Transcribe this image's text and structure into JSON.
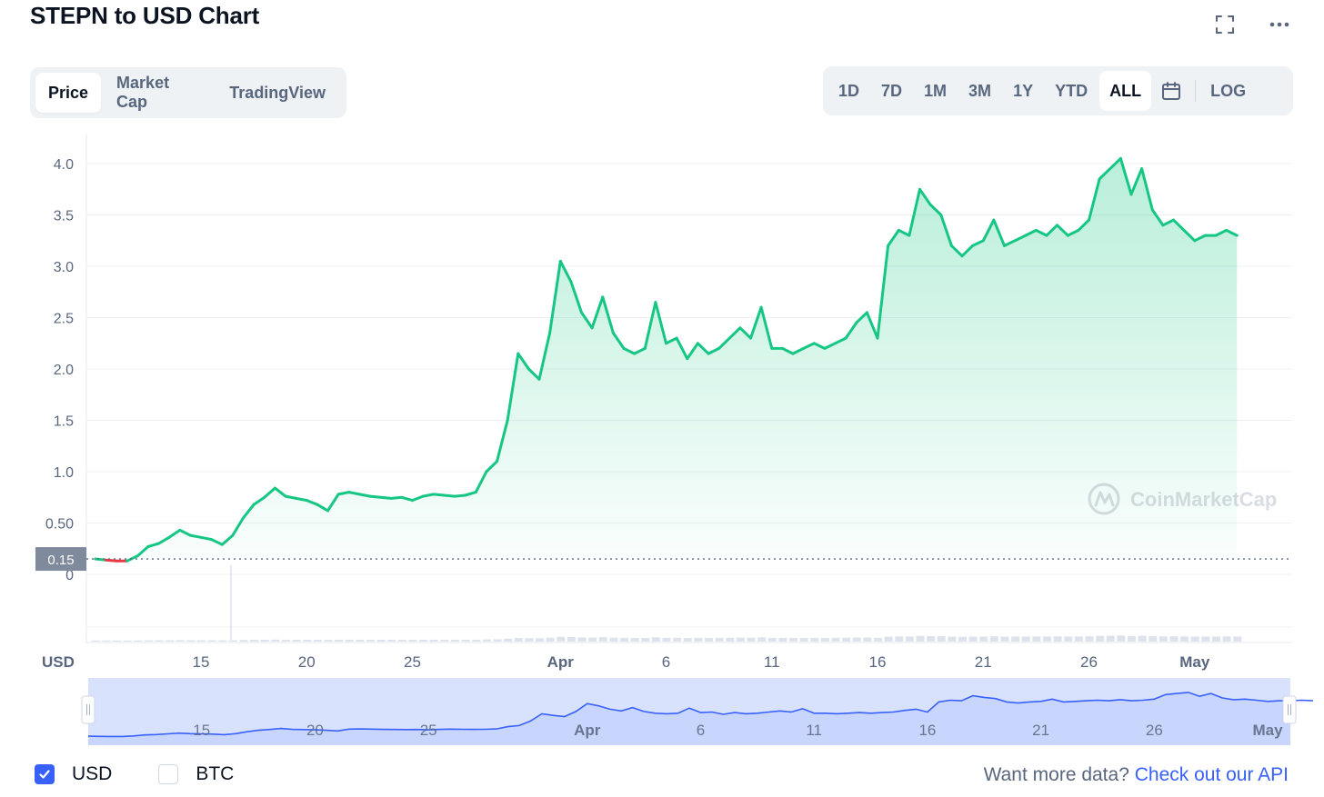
{
  "header": {
    "title": "STEPN to USD Chart"
  },
  "tabs": [
    {
      "label": "Price",
      "active": true
    },
    {
      "label": "Market Cap",
      "active": false
    },
    {
      "label": "TradingView",
      "active": false
    }
  ],
  "ranges": [
    {
      "label": "1D",
      "active": false
    },
    {
      "label": "7D",
      "active": false
    },
    {
      "label": "1M",
      "active": false
    },
    {
      "label": "3M",
      "active": false
    },
    {
      "label": "1Y",
      "active": false
    },
    {
      "label": "YTD",
      "active": false
    },
    {
      "label": "ALL",
      "active": true
    }
  ],
  "log_label": "LOG",
  "icons": {
    "fullscreen": "fullscreen-icon",
    "more": "more-icon",
    "calendar": "calendar-icon",
    "watermark": "coinmarketcap-logo"
  },
  "watermark_text": "CoinMarketCap",
  "currency_toggles": [
    {
      "label": "USD",
      "checked": true
    },
    {
      "label": "BTC",
      "checked": false
    }
  ],
  "footer": {
    "prefix": "Want more data?",
    "link": "Check out our API"
  },
  "colors": {
    "up": "#16c784",
    "down": "#ea3943",
    "accent": "#3861fb",
    "navigator": "#3861fb"
  },
  "chart_data": {
    "type": "area",
    "title": "STEPN to USD Chart",
    "ylabel": "USD",
    "xlabel": "",
    "ylim": [
      0,
      4.2
    ],
    "y_ticks": [
      "0",
      "0.50",
      "1.0",
      "1.5",
      "2.0",
      "2.5",
      "3.0",
      "3.5",
      "4.0"
    ],
    "x_ticks": [
      "15",
      "20",
      "25",
      "Apr",
      "6",
      "11",
      "16",
      "21",
      "26",
      "May"
    ],
    "baseline_label": "0.15",
    "baseline": 0.15,
    "grid": true,
    "series": [
      {
        "points": [
          [
            "Mar 10",
            0.15
          ],
          [
            "Mar 10.5",
            0.14
          ],
          [
            "Mar 11",
            0.13
          ],
          [
            "Mar 11.5",
            0.13
          ],
          [
            "Mar 12",
            0.18
          ],
          [
            "Mar 12.5",
            0.27
          ],
          [
            "Mar 13",
            0.3
          ],
          [
            "Mar 13.5",
            0.36
          ],
          [
            "Mar 14",
            0.43
          ],
          [
            "Mar 14.5",
            0.38
          ],
          [
            "Mar 15",
            0.36
          ],
          [
            "Mar 15.5",
            0.34
          ],
          [
            "Mar 16",
            0.29
          ],
          [
            "Mar 16.5",
            0.38
          ],
          [
            "Mar 17",
            0.55
          ],
          [
            "Mar 17.5",
            0.68
          ],
          [
            "Mar 18",
            0.75
          ],
          [
            "Mar 18.5",
            0.84
          ],
          [
            "Mar 19",
            0.76
          ],
          [
            "Mar 19.5",
            0.74
          ],
          [
            "Mar 20",
            0.72
          ],
          [
            "Mar 20.5",
            0.68
          ],
          [
            "Mar 21",
            0.62
          ],
          [
            "Mar 21.5",
            0.78
          ],
          [
            "Mar 22",
            0.8
          ],
          [
            "Mar 22.5",
            0.78
          ],
          [
            "Mar 23",
            0.76
          ],
          [
            "Mar 23.5",
            0.75
          ],
          [
            "Mar 24",
            0.74
          ],
          [
            "Mar 24.5",
            0.75
          ],
          [
            "Mar 25",
            0.72
          ],
          [
            "Mar 25.5",
            0.76
          ],
          [
            "Mar 26",
            0.78
          ],
          [
            "Mar 26.5",
            0.77
          ],
          [
            "Mar 27",
            0.76
          ],
          [
            "Mar 27.5",
            0.77
          ],
          [
            "Mar 28",
            0.8
          ],
          [
            "Mar 28.5",
            1.0
          ],
          [
            "Mar 29",
            1.1
          ],
          [
            "Mar 29.5",
            1.5
          ],
          [
            "Mar 30",
            2.15
          ],
          [
            "Mar 30.5",
            2.0
          ],
          [
            "Mar 31",
            1.9
          ],
          [
            "Mar 31.5",
            2.35
          ],
          [
            "Apr 1",
            3.05
          ],
          [
            "Apr 1.5",
            2.85
          ],
          [
            "Apr 2",
            2.55
          ],
          [
            "Apr 2.5",
            2.4
          ],
          [
            "Apr 3",
            2.7
          ],
          [
            "Apr 3.5",
            2.35
          ],
          [
            "Apr 4",
            2.2
          ],
          [
            "Apr 4.5",
            2.15
          ],
          [
            "Apr 5",
            2.2
          ],
          [
            "Apr 5.5",
            2.65
          ],
          [
            "Apr 6",
            2.25
          ],
          [
            "Apr 6.5",
            2.3
          ],
          [
            "Apr 7",
            2.1
          ],
          [
            "Apr 7.5",
            2.25
          ],
          [
            "Apr 8",
            2.15
          ],
          [
            "Apr 8.5",
            2.2
          ],
          [
            "Apr 9",
            2.3
          ],
          [
            "Apr 9.5",
            2.4
          ],
          [
            "Apr 10",
            2.3
          ],
          [
            "Apr 10.5",
            2.6
          ],
          [
            "Apr 11",
            2.2
          ],
          [
            "Apr 11.5",
            2.2
          ],
          [
            "Apr 12",
            2.15
          ],
          [
            "Apr 12.5",
            2.2
          ],
          [
            "Apr 13",
            2.25
          ],
          [
            "Apr 13.5",
            2.2
          ],
          [
            "Apr 14",
            2.25
          ],
          [
            "Apr 14.5",
            2.3
          ],
          [
            "Apr 15",
            2.45
          ],
          [
            "Apr 15.5",
            2.55
          ],
          [
            "Apr 16",
            2.3
          ],
          [
            "Apr 16.5",
            3.2
          ],
          [
            "Apr 17",
            3.35
          ],
          [
            "Apr 17.5",
            3.3
          ],
          [
            "Apr 18",
            3.75
          ],
          [
            "Apr 18.5",
            3.6
          ],
          [
            "Apr 19",
            3.5
          ],
          [
            "Apr 19.5",
            3.2
          ],
          [
            "Apr 20",
            3.1
          ],
          [
            "Apr 20.5",
            3.2
          ],
          [
            "Apr 21",
            3.25
          ],
          [
            "Apr 21.5",
            3.45
          ],
          [
            "Apr 22",
            3.2
          ],
          [
            "Apr 22.5",
            3.25
          ],
          [
            "Apr 23",
            3.3
          ],
          [
            "Apr 23.5",
            3.35
          ],
          [
            "Apr 24",
            3.3
          ],
          [
            "Apr 24.5",
            3.4
          ],
          [
            "Apr 25",
            3.3
          ],
          [
            "Apr 25.5",
            3.35
          ],
          [
            "Apr 26",
            3.45
          ],
          [
            "Apr 26.5",
            3.85
          ],
          [
            "Apr 27",
            3.95
          ],
          [
            "Apr 27.5",
            4.05
          ],
          [
            "Apr 28",
            3.7
          ],
          [
            "Apr 28.5",
            3.95
          ],
          [
            "Apr 29",
            3.55
          ],
          [
            "Apr 29.5",
            3.4
          ],
          [
            "Apr 30",
            3.45
          ],
          [
            "Apr 30.5",
            3.35
          ],
          [
            "May 1",
            3.25
          ],
          [
            "May 1.5",
            3.3
          ],
          [
            "May 2",
            3.3
          ],
          [
            "May 2.5",
            3.35
          ],
          [
            "May 3",
            3.3
          ]
        ]
      }
    ]
  }
}
